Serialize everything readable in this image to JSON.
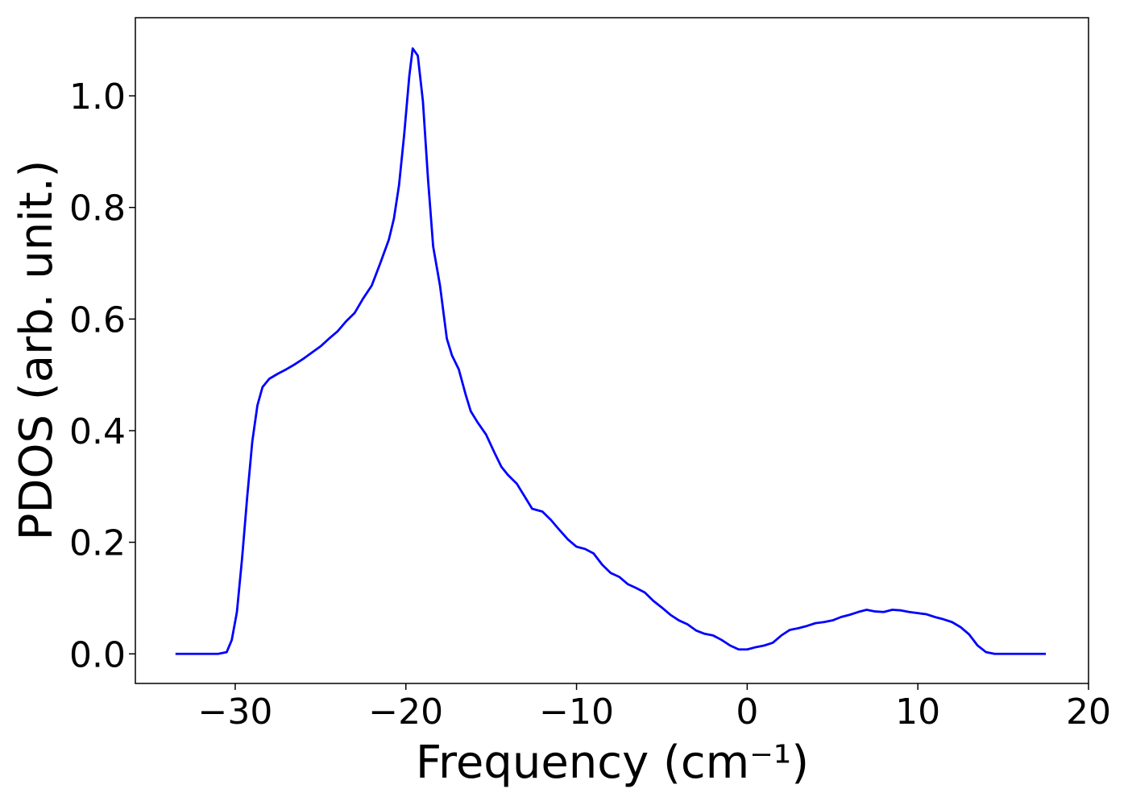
{
  "chart_data": {
    "type": "line",
    "x_label": "Frequency (cm⁻¹)",
    "y_label": "PDOS (arb. unit.)",
    "x": [
      -33.5,
      -31,
      -30.5,
      -30.2,
      -29.9,
      -29.6,
      -29.3,
      -29.0,
      -28.7,
      -28.4,
      -28.0,
      -27.5,
      -27,
      -26.5,
      -26,
      -25.5,
      -25,
      -24.5,
      -24,
      -23.5,
      -23,
      -22.5,
      -22,
      -21.5,
      -21,
      -20.7,
      -20.4,
      -20.1,
      -19.8,
      -19.6,
      -19.3,
      -19.0,
      -18.7,
      -18.4,
      -18.0,
      -17.6,
      -17.3,
      -16.9,
      -16.5,
      -16.2,
      -15.8,
      -15.3,
      -14.8,
      -14.4,
      -14.0,
      -13.5,
      -13.0,
      -12.6,
      -12.0,
      -11.5,
      -11.0,
      -10.5,
      -10.0,
      -9.5,
      -9.0,
      -8.5,
      -8.0,
      -7.5,
      -7.0,
      -6.5,
      -6.0,
      -5.5,
      -5.0,
      -4.5,
      -4.0,
      -3.5,
      -3.0,
      -2.5,
      -2.0,
      -1.5,
      -1.0,
      -0.5,
      0,
      0.5,
      1.0,
      1.5,
      2.0,
      2.5,
      3.0,
      3.5,
      4.0,
      4.5,
      5.0,
      5.5,
      6.0,
      6.5,
      7.0,
      7.5,
      8.0,
      8.5,
      9.0,
      9.5,
      10.0,
      10.5,
      11.0,
      11.5,
      12.0,
      12.5,
      13.0,
      13.5,
      14.0,
      14.5,
      17.5
    ],
    "series": [
      {
        "color": "#0000ff",
        "values": [
          0,
          0,
          0.003,
          0.025,
          0.075,
          0.17,
          0.28,
          0.38,
          0.445,
          0.478,
          0.493,
          0.502,
          0.51,
          0.519,
          0.529,
          0.54,
          0.551,
          0.565,
          0.578,
          0.596,
          0.611,
          0.637,
          0.66,
          0.7,
          0.742,
          0.78,
          0.84,
          0.93,
          1.035,
          1.085,
          1.072,
          0.99,
          0.85,
          0.73,
          0.66,
          0.565,
          0.535,
          0.51,
          0.465,
          0.435,
          0.415,
          0.393,
          0.36,
          0.335,
          0.32,
          0.305,
          0.28,
          0.26,
          0.255,
          0.24,
          0.222,
          0.205,
          0.192,
          0.188,
          0.18,
          0.16,
          0.145,
          0.138,
          0.125,
          0.118,
          0.11,
          0.095,
          0.083,
          0.07,
          0.06,
          0.053,
          0.042,
          0.036,
          0.033,
          0.025,
          0.015,
          0.008,
          0.008,
          0.012,
          0.015,
          0.02,
          0.033,
          0.043,
          0.046,
          0.05,
          0.055,
          0.057,
          0.06,
          0.066,
          0.07,
          0.075,
          0.079,
          0.076,
          0.075,
          0.079,
          0.078,
          0.075,
          0.073,
          0.071,
          0.066,
          0.062,
          0.057,
          0.048,
          0.035,
          0.015,
          0.003,
          0,
          0
        ]
      }
    ],
    "xlim": [
      -35.85,
      20
    ],
    "ylim": [
      -0.053,
      1.14
    ],
    "xticks": [
      {
        "value": -30,
        "label": "−30"
      },
      {
        "value": -20,
        "label": "−20"
      },
      {
        "value": -10,
        "label": "−10"
      },
      0,
      10,
      20
    ],
    "yticks": [
      {
        "value": 0,
        "label": "0.0"
      },
      0.2,
      0.4,
      0.6,
      0.8,
      {
        "value": 1,
        "label": "1.0"
      }
    ],
    "grid": false
  }
}
